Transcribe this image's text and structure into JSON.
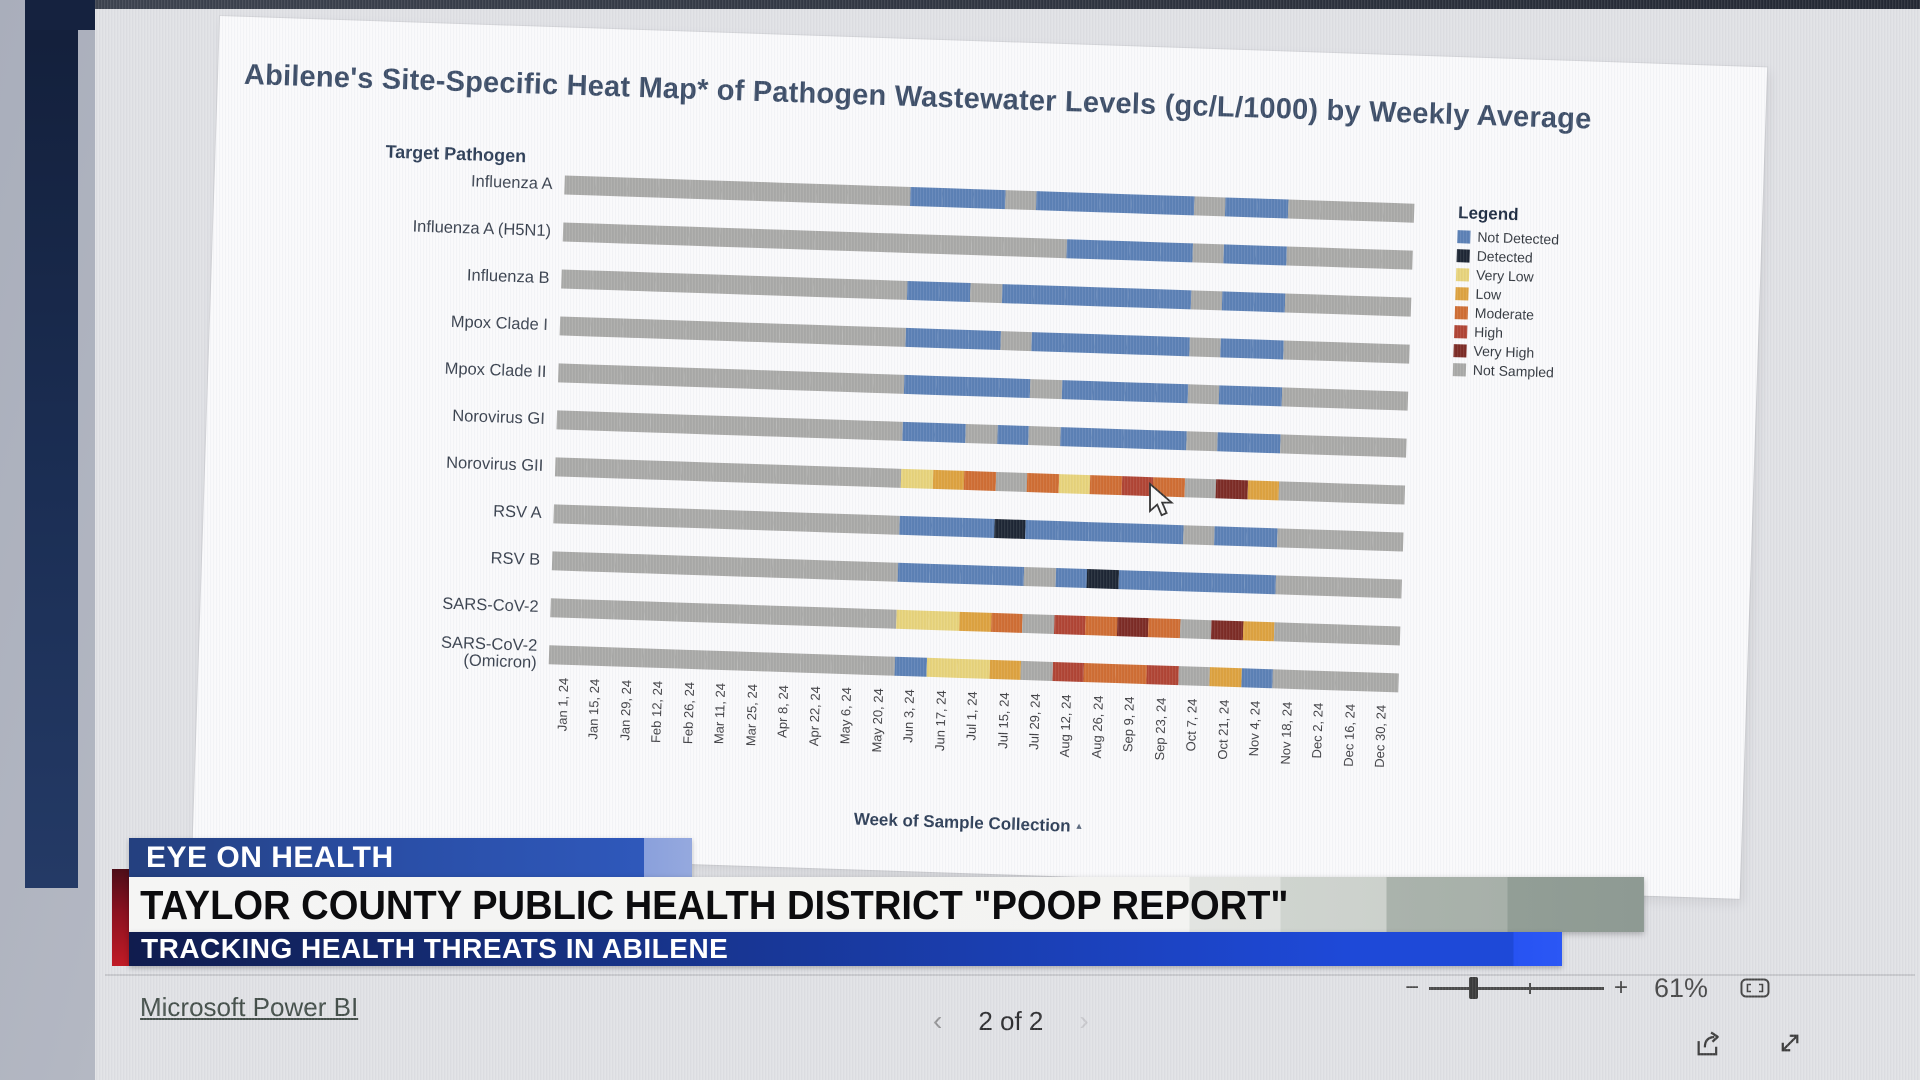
{
  "news_banner": {
    "kicker": "EYE ON HEALTH",
    "headline": "TAYLOR COUNTY PUBLIC HEALTH DISTRICT \"POOP REPORT\"",
    "subhead": "TRACKING HEALTH THREATS IN ABILENE"
  },
  "footer": {
    "brand_link": "Microsoft Power BI",
    "prev_icon": "‹",
    "page_indicator": "2 of 2",
    "next_icon": "›",
    "zoom_minus": "−",
    "zoom_plus": "+",
    "zoom_percent": "61%"
  },
  "chart_data": {
    "type": "heatmap",
    "title": "Abilene's Site-Specific Heat Map* of Pathogen Wastewater Levels (gc/L/1000) by Weekly Average",
    "row_axis_label": "Target Pathogen",
    "xlabel": "Week of Sample Collection",
    "legend_title": "Legend",
    "legend_position": "right",
    "categories": [
      "Jan 1, 24",
      "Jan 15, 24",
      "Jan 29, 24",
      "Feb 12, 24",
      "Feb 26, 24",
      "Mar 11, 24",
      "Mar 25, 24",
      "Apr 8, 24",
      "Apr 22, 24",
      "May 6, 24",
      "May 20, 24",
      "Jun 3, 24",
      "Jun 17, 24",
      "Jul 1, 24",
      "Jul 15, 24",
      "Jul 29, 24",
      "Aug 12, 24",
      "Aug 26, 24",
      "Sep 9, 24",
      "Sep 23, 24",
      "Oct 7, 24",
      "Oct 21, 24",
      "Nov 4, 24",
      "Nov 18, 24",
      "Dec 2, 24",
      "Dec 16, 24",
      "Dec 30, 24"
    ],
    "states": {
      "ND": {
        "label": "Not Detected",
        "color": "#5b80b5"
      },
      "D": {
        "label": "Detected",
        "color": "#1d2634"
      },
      "VL": {
        "label": "Very Low",
        "color": "#e7d37b"
      },
      "L": {
        "label": "Low",
        "color": "#dda23f"
      },
      "M": {
        "label": "Moderate",
        "color": "#cf6d33"
      },
      "H": {
        "label": "High",
        "color": "#b04434"
      },
      "VH": {
        "label": "Very High",
        "color": "#7c2b25"
      },
      "NS": {
        "label": "Not Sampled",
        "color": "#a9a9a7"
      }
    },
    "legend_order": [
      "ND",
      "D",
      "VL",
      "L",
      "M",
      "H",
      "VH",
      "NS"
    ],
    "rows": [
      {
        "name": "Influenza A",
        "values": [
          "NS",
          "NS",
          "NS",
          "NS",
          "NS",
          "NS",
          "NS",
          "NS",
          "NS",
          "NS",
          "NS",
          "ND",
          "ND",
          "ND",
          "NS",
          "ND",
          "ND",
          "ND",
          "ND",
          "ND",
          "NS",
          "ND",
          "ND",
          "NS",
          "NS",
          "NS",
          "NS"
        ]
      },
      {
        "name": "Influenza A (H5N1)",
        "values": [
          "NS",
          "NS",
          "NS",
          "NS",
          "NS",
          "NS",
          "NS",
          "NS",
          "NS",
          "NS",
          "NS",
          "NS",
          "NS",
          "NS",
          "NS",
          "NS",
          "ND",
          "ND",
          "ND",
          "ND",
          "NS",
          "ND",
          "ND",
          "NS",
          "NS",
          "NS",
          "NS"
        ]
      },
      {
        "name": "Influenza B",
        "values": [
          "NS",
          "NS",
          "NS",
          "NS",
          "NS",
          "NS",
          "NS",
          "NS",
          "NS",
          "NS",
          "NS",
          "ND",
          "ND",
          "NS",
          "ND",
          "ND",
          "ND",
          "ND",
          "ND",
          "ND",
          "NS",
          "ND",
          "ND",
          "NS",
          "NS",
          "NS",
          "NS"
        ]
      },
      {
        "name": "Mpox Clade I",
        "values": [
          "NS",
          "NS",
          "NS",
          "NS",
          "NS",
          "NS",
          "NS",
          "NS",
          "NS",
          "NS",
          "NS",
          "ND",
          "ND",
          "ND",
          "NS",
          "ND",
          "ND",
          "ND",
          "ND",
          "ND",
          "NS",
          "ND",
          "ND",
          "NS",
          "NS",
          "NS",
          "NS"
        ]
      },
      {
        "name": "Mpox Clade II",
        "values": [
          "NS",
          "NS",
          "NS",
          "NS",
          "NS",
          "NS",
          "NS",
          "NS",
          "NS",
          "NS",
          "NS",
          "ND",
          "ND",
          "ND",
          "ND",
          "NS",
          "ND",
          "ND",
          "ND",
          "ND",
          "NS",
          "ND",
          "ND",
          "NS",
          "NS",
          "NS",
          "NS"
        ]
      },
      {
        "name": "Norovirus GI",
        "values": [
          "NS",
          "NS",
          "NS",
          "NS",
          "NS",
          "NS",
          "NS",
          "NS",
          "NS",
          "NS",
          "NS",
          "ND",
          "ND",
          "NS",
          "ND",
          "NS",
          "ND",
          "ND",
          "ND",
          "ND",
          "NS",
          "ND",
          "ND",
          "NS",
          "NS",
          "NS",
          "NS"
        ]
      },
      {
        "name": "Norovirus GII",
        "values": [
          "NS",
          "NS",
          "NS",
          "NS",
          "NS",
          "NS",
          "NS",
          "NS",
          "NS",
          "NS",
          "NS",
          "VL",
          "L",
          "M",
          "NS",
          "M",
          "VL",
          "M",
          "H",
          "M",
          "NS",
          "VH",
          "L",
          "NS",
          "NS",
          "NS",
          "NS"
        ]
      },
      {
        "name": "RSV A",
        "values": [
          "NS",
          "NS",
          "NS",
          "NS",
          "NS",
          "NS",
          "NS",
          "NS",
          "NS",
          "NS",
          "NS",
          "ND",
          "ND",
          "ND",
          "D",
          "ND",
          "ND",
          "ND",
          "ND",
          "ND",
          "NS",
          "ND",
          "ND",
          "NS",
          "NS",
          "NS",
          "NS"
        ]
      },
      {
        "name": "RSV B",
        "values": [
          "NS",
          "NS",
          "NS",
          "NS",
          "NS",
          "NS",
          "NS",
          "NS",
          "NS",
          "NS",
          "NS",
          "ND",
          "ND",
          "ND",
          "ND",
          "NS",
          "ND",
          "D",
          "ND",
          "ND",
          "ND",
          "ND",
          "ND",
          "NS",
          "NS",
          "NS",
          "NS"
        ]
      },
      {
        "name": "SARS-CoV-2",
        "values": [
          "NS",
          "NS",
          "NS",
          "NS",
          "NS",
          "NS",
          "NS",
          "NS",
          "NS",
          "NS",
          "NS",
          "VL",
          "VL",
          "L",
          "M",
          "NS",
          "H",
          "M",
          "VH",
          "M",
          "NS",
          "VH",
          "L",
          "NS",
          "NS",
          "NS",
          "NS"
        ]
      },
      {
        "name": "SARS-CoV-2\n(Omicron)",
        "values": [
          "NS",
          "NS",
          "NS",
          "NS",
          "NS",
          "NS",
          "NS",
          "NS",
          "NS",
          "NS",
          "NS",
          "ND",
          "VL",
          "VL",
          "L",
          "NS",
          "H",
          "M",
          "M",
          "H",
          "NS",
          "L",
          "ND",
          "NS",
          "NS",
          "NS",
          "NS"
        ]
      }
    ]
  }
}
